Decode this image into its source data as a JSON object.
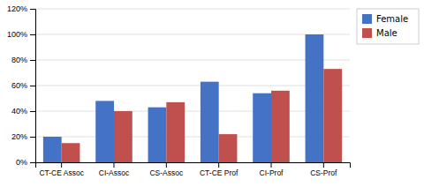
{
  "chart_data": {
    "type": "bar",
    "categories": [
      "CT-CE Assoc",
      "CI-Assoc",
      "CS-Assoc",
      "CT-CE Prof",
      "CI-Prof",
      "CS-Prof"
    ],
    "series": [
      {
        "name": "Female",
        "color": "#4472C4",
        "values": [
          0.2,
          0.48,
          0.43,
          0.63,
          0.54,
          1.0
        ]
      },
      {
        "name": "Male",
        "color": "#C0504D",
        "values": [
          0.15,
          0.4,
          0.47,
          0.22,
          0.56,
          0.73
        ]
      }
    ],
    "ylim": [
      0,
      1.2
    ],
    "yticks": [
      {
        "value": 0,
        "label": "0%"
      },
      {
        "value": 0.2,
        "label": "20%"
      },
      {
        "value": 0.4,
        "label": "40%"
      },
      {
        "value": 0.6,
        "label": "60%"
      },
      {
        "value": 0.8,
        "label": "80%"
      },
      {
        "value": 1.0,
        "label": "100%"
      },
      {
        "value": 1.2,
        "label": "120%"
      }
    ],
    "grid": true,
    "legend": "top-right"
  }
}
